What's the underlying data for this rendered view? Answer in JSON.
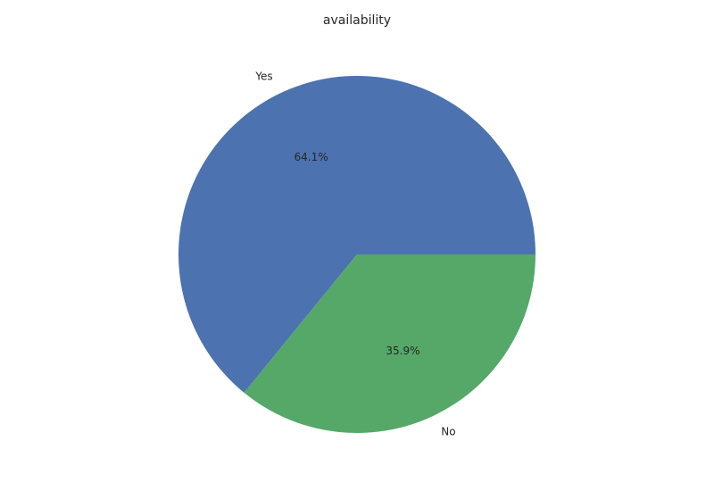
{
  "chart_data": {
    "type": "pie",
    "title": "availability",
    "categories": [
      "Yes",
      "No"
    ],
    "values": [
      64.1,
      35.9
    ],
    "percent_labels": [
      "64.1%",
      "35.9%"
    ],
    "colors": [
      "#4c72b0",
      "#55a868"
    ],
    "start_angle_deg": 0,
    "direction": "counterclockwise"
  }
}
